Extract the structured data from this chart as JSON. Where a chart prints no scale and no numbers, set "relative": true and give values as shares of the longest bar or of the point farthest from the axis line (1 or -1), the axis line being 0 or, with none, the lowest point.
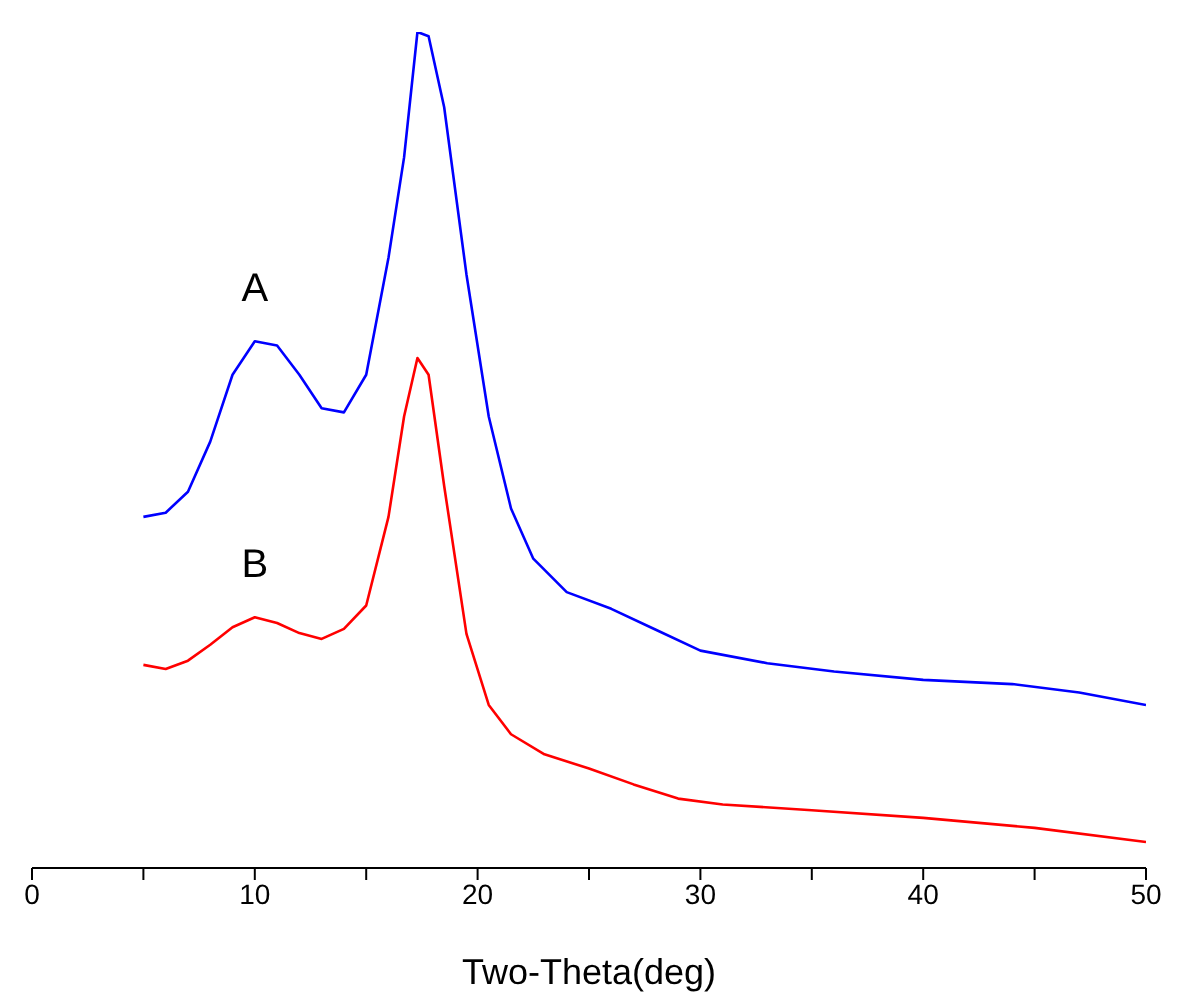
{
  "chart_data": {
    "type": "line",
    "relative": true,
    "xlabel": "Two-Theta(deg)",
    "xlim": [
      0,
      50
    ],
    "xticks": [
      0,
      {
        "value": 5,
        "label": null
      },
      10,
      {
        "value": 15,
        "label": null
      },
      20,
      {
        "value": 25,
        "label": null
      },
      30,
      {
        "value": 35,
        "label": null
      },
      40,
      {
        "value": 45,
        "label": null
      },
      50
    ],
    "tick_labels": "x",
    "grid": false,
    "legend": false,
    "marker": "none",
    "line_style": "solid",
    "series": [
      {
        "name": "A",
        "color": "#0000ff",
        "x": [
          5,
          6,
          7,
          8,
          9,
          10,
          11,
          12,
          13,
          14,
          15,
          16,
          16.7,
          17.3,
          17.8,
          18.5,
          19.5,
          20.5,
          21.5,
          22.5,
          24,
          26,
          28,
          30,
          33,
          36,
          40,
          44,
          47,
          50
        ],
        "values": [
          0.42,
          0.425,
          0.45,
          0.51,
          0.59,
          0.63,
          0.625,
          0.59,
          0.55,
          0.545,
          0.59,
          0.73,
          0.85,
          1.0,
          0.995,
          0.91,
          0.71,
          0.54,
          0.43,
          0.37,
          0.33,
          0.31,
          0.285,
          0.26,
          0.245,
          0.235,
          0.225,
          0.22,
          0.21,
          0.195
        ]
      },
      {
        "name": "B",
        "color": "#ff0000",
        "x": [
          5,
          6,
          7,
          8,
          9,
          10,
          11,
          12,
          13,
          14,
          15,
          16,
          16.7,
          17.3,
          17.8,
          18.5,
          19.5,
          20.5,
          21.5,
          23,
          25,
          27,
          29,
          31,
          35,
          40,
          45,
          50
        ],
        "values": [
          0.243,
          0.238,
          0.248,
          0.267,
          0.288,
          0.3,
          0.293,
          0.281,
          0.274,
          0.286,
          0.314,
          0.42,
          0.54,
          0.61,
          0.59,
          0.457,
          0.28,
          0.195,
          0.16,
          0.136,
          0.119,
          0.1,
          0.083,
          0.076,
          0.069,
          0.06,
          0.048,
          0.031
        ]
      }
    ]
  }
}
